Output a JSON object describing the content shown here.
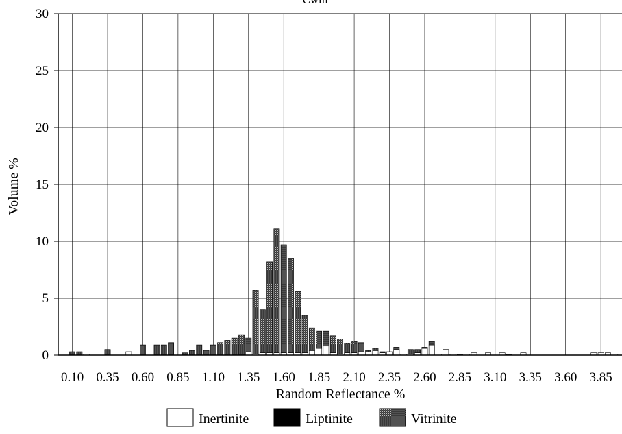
{
  "chart_data": {
    "type": "bar",
    "title": "Cwm",
    "xlabel": "Random Reflectance %",
    "ylabel": "Volume %",
    "ylim": [
      0,
      30
    ],
    "y_ticks": [
      "0",
      "5",
      "10",
      "15",
      "20",
      "25",
      "30"
    ],
    "x_range": [
      0.0,
      4.0
    ],
    "bin_width": 0.05,
    "x_tick_labels": [
      "0.10",
      "0.35",
      "0.60",
      "0.85",
      "1.10",
      "1.35",
      "1.60",
      "1.85",
      "2.10",
      "2.35",
      "2.60",
      "2.85",
      "3.10",
      "3.35",
      "3.60",
      "3.85"
    ],
    "grid": true,
    "stacked": true,
    "legend_position": "bottom",
    "legend": [
      {
        "label": "Inertinite",
        "pattern": "white"
      },
      {
        "label": "Liptinite",
        "pattern": "black"
      },
      {
        "label": "Vitrinite",
        "pattern": "dotted"
      }
    ],
    "x": [
      0.1,
      0.15,
      0.2,
      0.25,
      0.3,
      0.35,
      0.4,
      0.45,
      0.5,
      0.55,
      0.6,
      0.65,
      0.7,
      0.75,
      0.8,
      0.85,
      0.9,
      0.95,
      1.0,
      1.05,
      1.1,
      1.15,
      1.2,
      1.25,
      1.3,
      1.35,
      1.4,
      1.45,
      1.5,
      1.55,
      1.6,
      1.65,
      1.7,
      1.75,
      1.8,
      1.85,
      1.9,
      1.95,
      2.0,
      2.05,
      2.1,
      2.15,
      2.2,
      2.25,
      2.3,
      2.35,
      2.4,
      2.45,
      2.5,
      2.55,
      2.6,
      2.65,
      2.7,
      2.75,
      2.8,
      2.85,
      2.9,
      2.95,
      3.0,
      3.05,
      3.1,
      3.15,
      3.2,
      3.25,
      3.3,
      3.35,
      3.4,
      3.45,
      3.5,
      3.55,
      3.6,
      3.65,
      3.7,
      3.75,
      3.8,
      3.85,
      3.9,
      3.95
    ],
    "series": [
      {
        "name": "Inertinite",
        "values": [
          0,
          0,
          0.1,
          0,
          0,
          0,
          0,
          0,
          0.3,
          0,
          0,
          0,
          0,
          0,
          0,
          0,
          0,
          0,
          0,
          0,
          0,
          0,
          0,
          0,
          0,
          0.3,
          0.1,
          0.2,
          0.2,
          0.2,
          0.2,
          0.2,
          0.2,
          0.2,
          0.4,
          0.6,
          0.8,
          0.2,
          0.1,
          0.2,
          0.2,
          0.3,
          0.3,
          0.4,
          0.2,
          0.3,
          0.5,
          0.1,
          0.1,
          0.2,
          0.6,
          0.9,
          0.1,
          0.5,
          0.1,
          0,
          0.1,
          0.2,
          0,
          0.2,
          0,
          0.2,
          0,
          0,
          0.2,
          0,
          0,
          0,
          0,
          0,
          0,
          0,
          0,
          0,
          0.2,
          0.2,
          0.2,
          0.1
        ]
      },
      {
        "name": "Liptinite",
        "values": [
          0,
          0,
          0,
          0,
          0,
          0,
          0,
          0,
          0,
          0,
          0,
          0,
          0,
          0,
          0,
          0,
          0,
          0,
          0,
          0,
          0,
          0,
          0,
          0,
          0,
          0,
          0,
          0,
          0,
          0,
          0,
          0,
          0,
          0,
          0,
          0,
          0,
          0,
          0,
          0,
          0,
          0,
          0,
          0,
          0,
          0,
          0,
          0,
          0,
          0,
          0,
          0,
          0,
          0,
          0,
          0,
          0,
          0,
          0,
          0,
          0,
          0,
          0,
          0,
          0,
          0,
          0,
          0,
          0,
          0,
          0,
          0,
          0,
          0,
          0,
          0,
          0,
          0
        ]
      },
      {
        "name": "Vitrinite",
        "values": [
          0.3,
          0.3,
          0,
          0,
          0,
          0.5,
          0,
          0,
          0,
          0,
          0.9,
          0,
          0.9,
          0.9,
          1.1,
          0,
          0.2,
          0.4,
          0.9,
          0.4,
          0.9,
          1.1,
          1.3,
          1.5,
          1.8,
          1.2,
          5.6,
          3.8,
          8.0,
          10.9,
          9.5,
          8.3,
          5.4,
          3.3,
          2.0,
          1.5,
          1.3,
          1.5,
          1.3,
          0.8,
          1.0,
          0.8,
          0.1,
          0.2,
          0.1,
          0,
          0.2,
          0,
          0.4,
          0.3,
          0.1,
          0.3,
          0,
          0,
          0,
          0.1,
          0,
          0,
          0,
          0,
          0,
          0,
          0.1,
          0,
          0,
          0,
          0,
          0,
          0,
          0,
          0,
          0,
          0,
          0,
          0,
          0,
          0,
          0
        ]
      }
    ]
  }
}
